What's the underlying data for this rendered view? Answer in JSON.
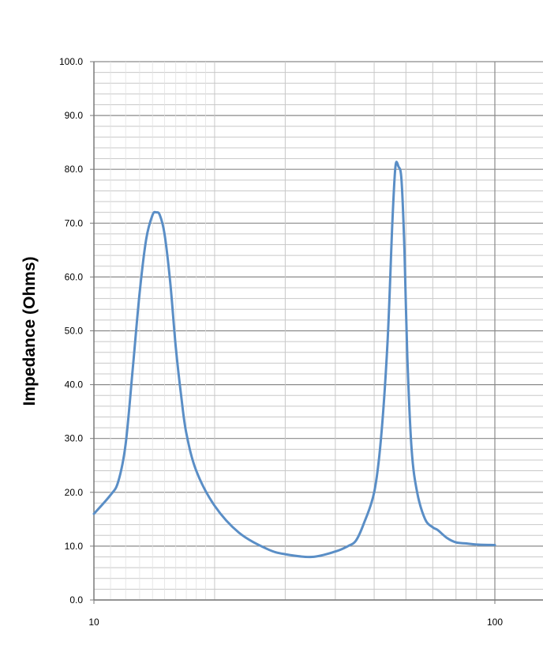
{
  "chart_data": {
    "type": "line",
    "title": "",
    "xlabel": "",
    "ylabel": "Impedance (Ohms)",
    "xscale": "log",
    "xlim": [
      10,
      100
    ],
    "ylim": [
      0,
      100
    ],
    "x_ticks": [
      "10",
      "100"
    ],
    "y_ticks": [
      "0.0",
      "10.0",
      "20.0",
      "30.0",
      "40.0",
      "50.0",
      "60.0",
      "70.0",
      "80.0",
      "90.0",
      "100.0"
    ],
    "grid": "on",
    "legend": "none",
    "series_color": "#5a8ec6",
    "series": [
      {
        "x": [
          10,
          11,
          11.5,
          12,
          12.5,
          13,
          13.5,
          14,
          14.3,
          14.6,
          15,
          15.5,
          16,
          16.5,
          17,
          18,
          20,
          23,
          27,
          30,
          35,
          40,
          43,
          45,
          47,
          50,
          52,
          54,
          55.5,
          56.5,
          57.5,
          58.5,
          59.5,
          60.5,
          62,
          64,
          67,
          70,
          72,
          76,
          80,
          85,
          90,
          100
        ],
        "y": [
          16,
          19.5,
          22,
          29,
          43,
          57,
          67,
          71.5,
          72,
          71.5,
          68,
          59,
          47,
          38,
          31,
          24,
          17.5,
          12.5,
          9.5,
          8.5,
          8,
          9,
          10,
          11,
          14,
          20,
          30,
          48,
          70,
          80.5,
          80.5,
          78,
          65,
          45,
          28,
          20,
          15,
          13.5,
          13,
          11.5,
          10.7,
          10.5,
          10.3,
          10.2
        ]
      }
    ]
  }
}
